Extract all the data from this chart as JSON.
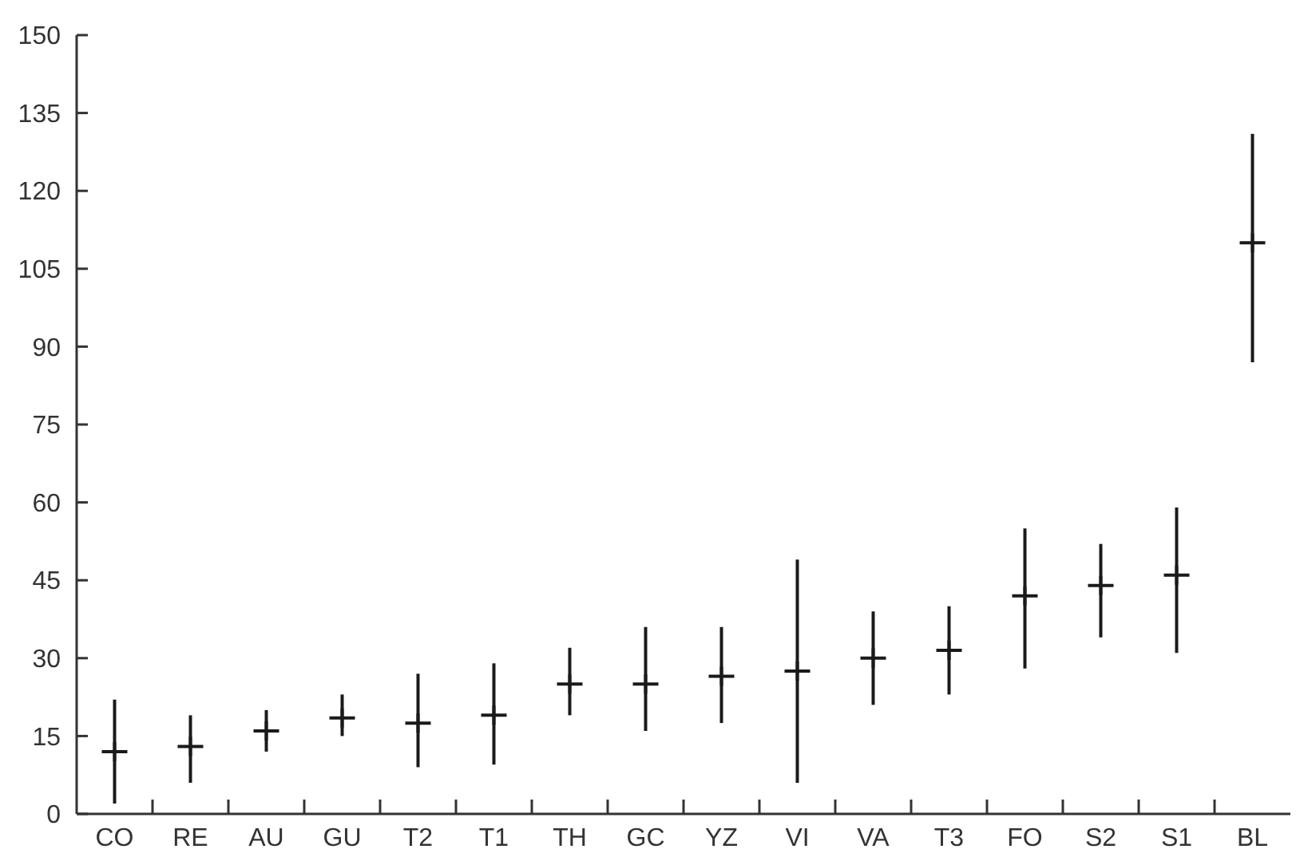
{
  "chart_data": {
    "type": "scatter",
    "categories": [
      "CO",
      "RE",
      "AU",
      "GU",
      "T2",
      "T1",
      "TH",
      "GC",
      "YZ",
      "VI",
      "VA",
      "T3",
      "FO",
      "S2",
      "S1",
      "BL"
    ],
    "values": [
      12,
      13,
      16,
      18.5,
      17.5,
      19,
      25,
      25,
      26.5,
      27.5,
      30,
      31.5,
      42,
      44,
      46,
      110
    ],
    "errors": [
      [
        2,
        22
      ],
      [
        6,
        19
      ],
      [
        12,
        20
      ],
      [
        15,
        23
      ],
      [
        9,
        27
      ],
      [
        9.5,
        29
      ],
      [
        19,
        32
      ],
      [
        16,
        36
      ],
      [
        17.5,
        36
      ],
      [
        6,
        49
      ],
      [
        21,
        39
      ],
      [
        23,
        40
      ],
      [
        28,
        55
      ],
      [
        34,
        52
      ],
      [
        31,
        59
      ],
      [
        87,
        131
      ]
    ],
    "color": "#1a1a1a",
    "ylim": [
      0,
      150
    ],
    "yticks": [
      0,
      15,
      30,
      45,
      60,
      75,
      90,
      105,
      120,
      135,
      150
    ],
    "marker": "cross",
    "grid": false
  }
}
